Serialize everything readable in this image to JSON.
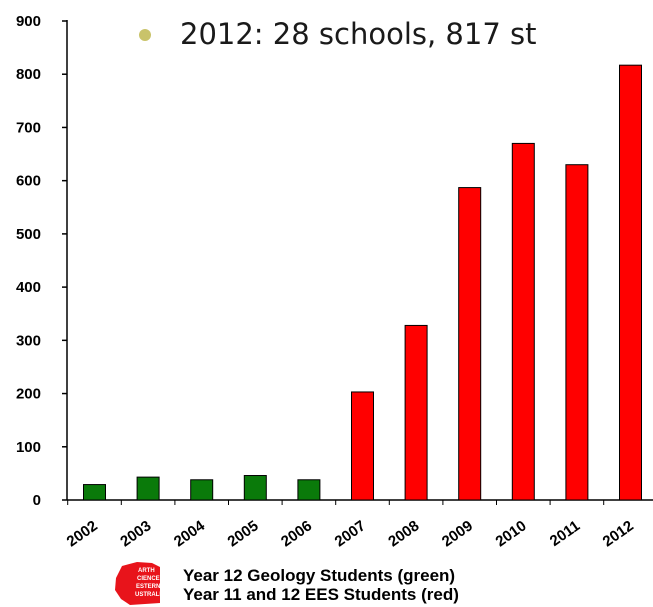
{
  "bullet": {
    "text": "2012:  28 schools, 817 st",
    "color": "#c9c36a"
  },
  "legend": {
    "line1": "Year 12 Geology Students (green)",
    "line2": "Year 11 and 12 EES Students (red)"
  },
  "logo": {
    "letters": [
      "ARTH",
      "CIENCE",
      "ESTERN",
      "USTRALIA"
    ],
    "color": "#e8141b"
  },
  "colors": {
    "geology": "#0a7a0a",
    "ees": "#ff0000"
  },
  "chart_data": {
    "type": "bar",
    "categories": [
      "2002",
      "2003",
      "2004",
      "2005",
      "2006",
      "2007",
      "2008",
      "2009",
      "2010",
      "2011",
      "2012"
    ],
    "series": [
      {
        "name": "Year 12 Geology Students (green)",
        "values": [
          29,
          43,
          38,
          46,
          38,
          null,
          null,
          null,
          null,
          null,
          null
        ]
      },
      {
        "name": "Year 11 and 12 EES Students (red)",
        "values": [
          null,
          null,
          null,
          null,
          null,
          203,
          328,
          587,
          670,
          630,
          817
        ]
      }
    ],
    "yticks": [
      0,
      100,
      200,
      300,
      400,
      500,
      600,
      700,
      800,
      900
    ],
    "ylim": [
      0,
      900
    ],
    "grid": false,
    "xlabel": "",
    "ylabel": ""
  }
}
